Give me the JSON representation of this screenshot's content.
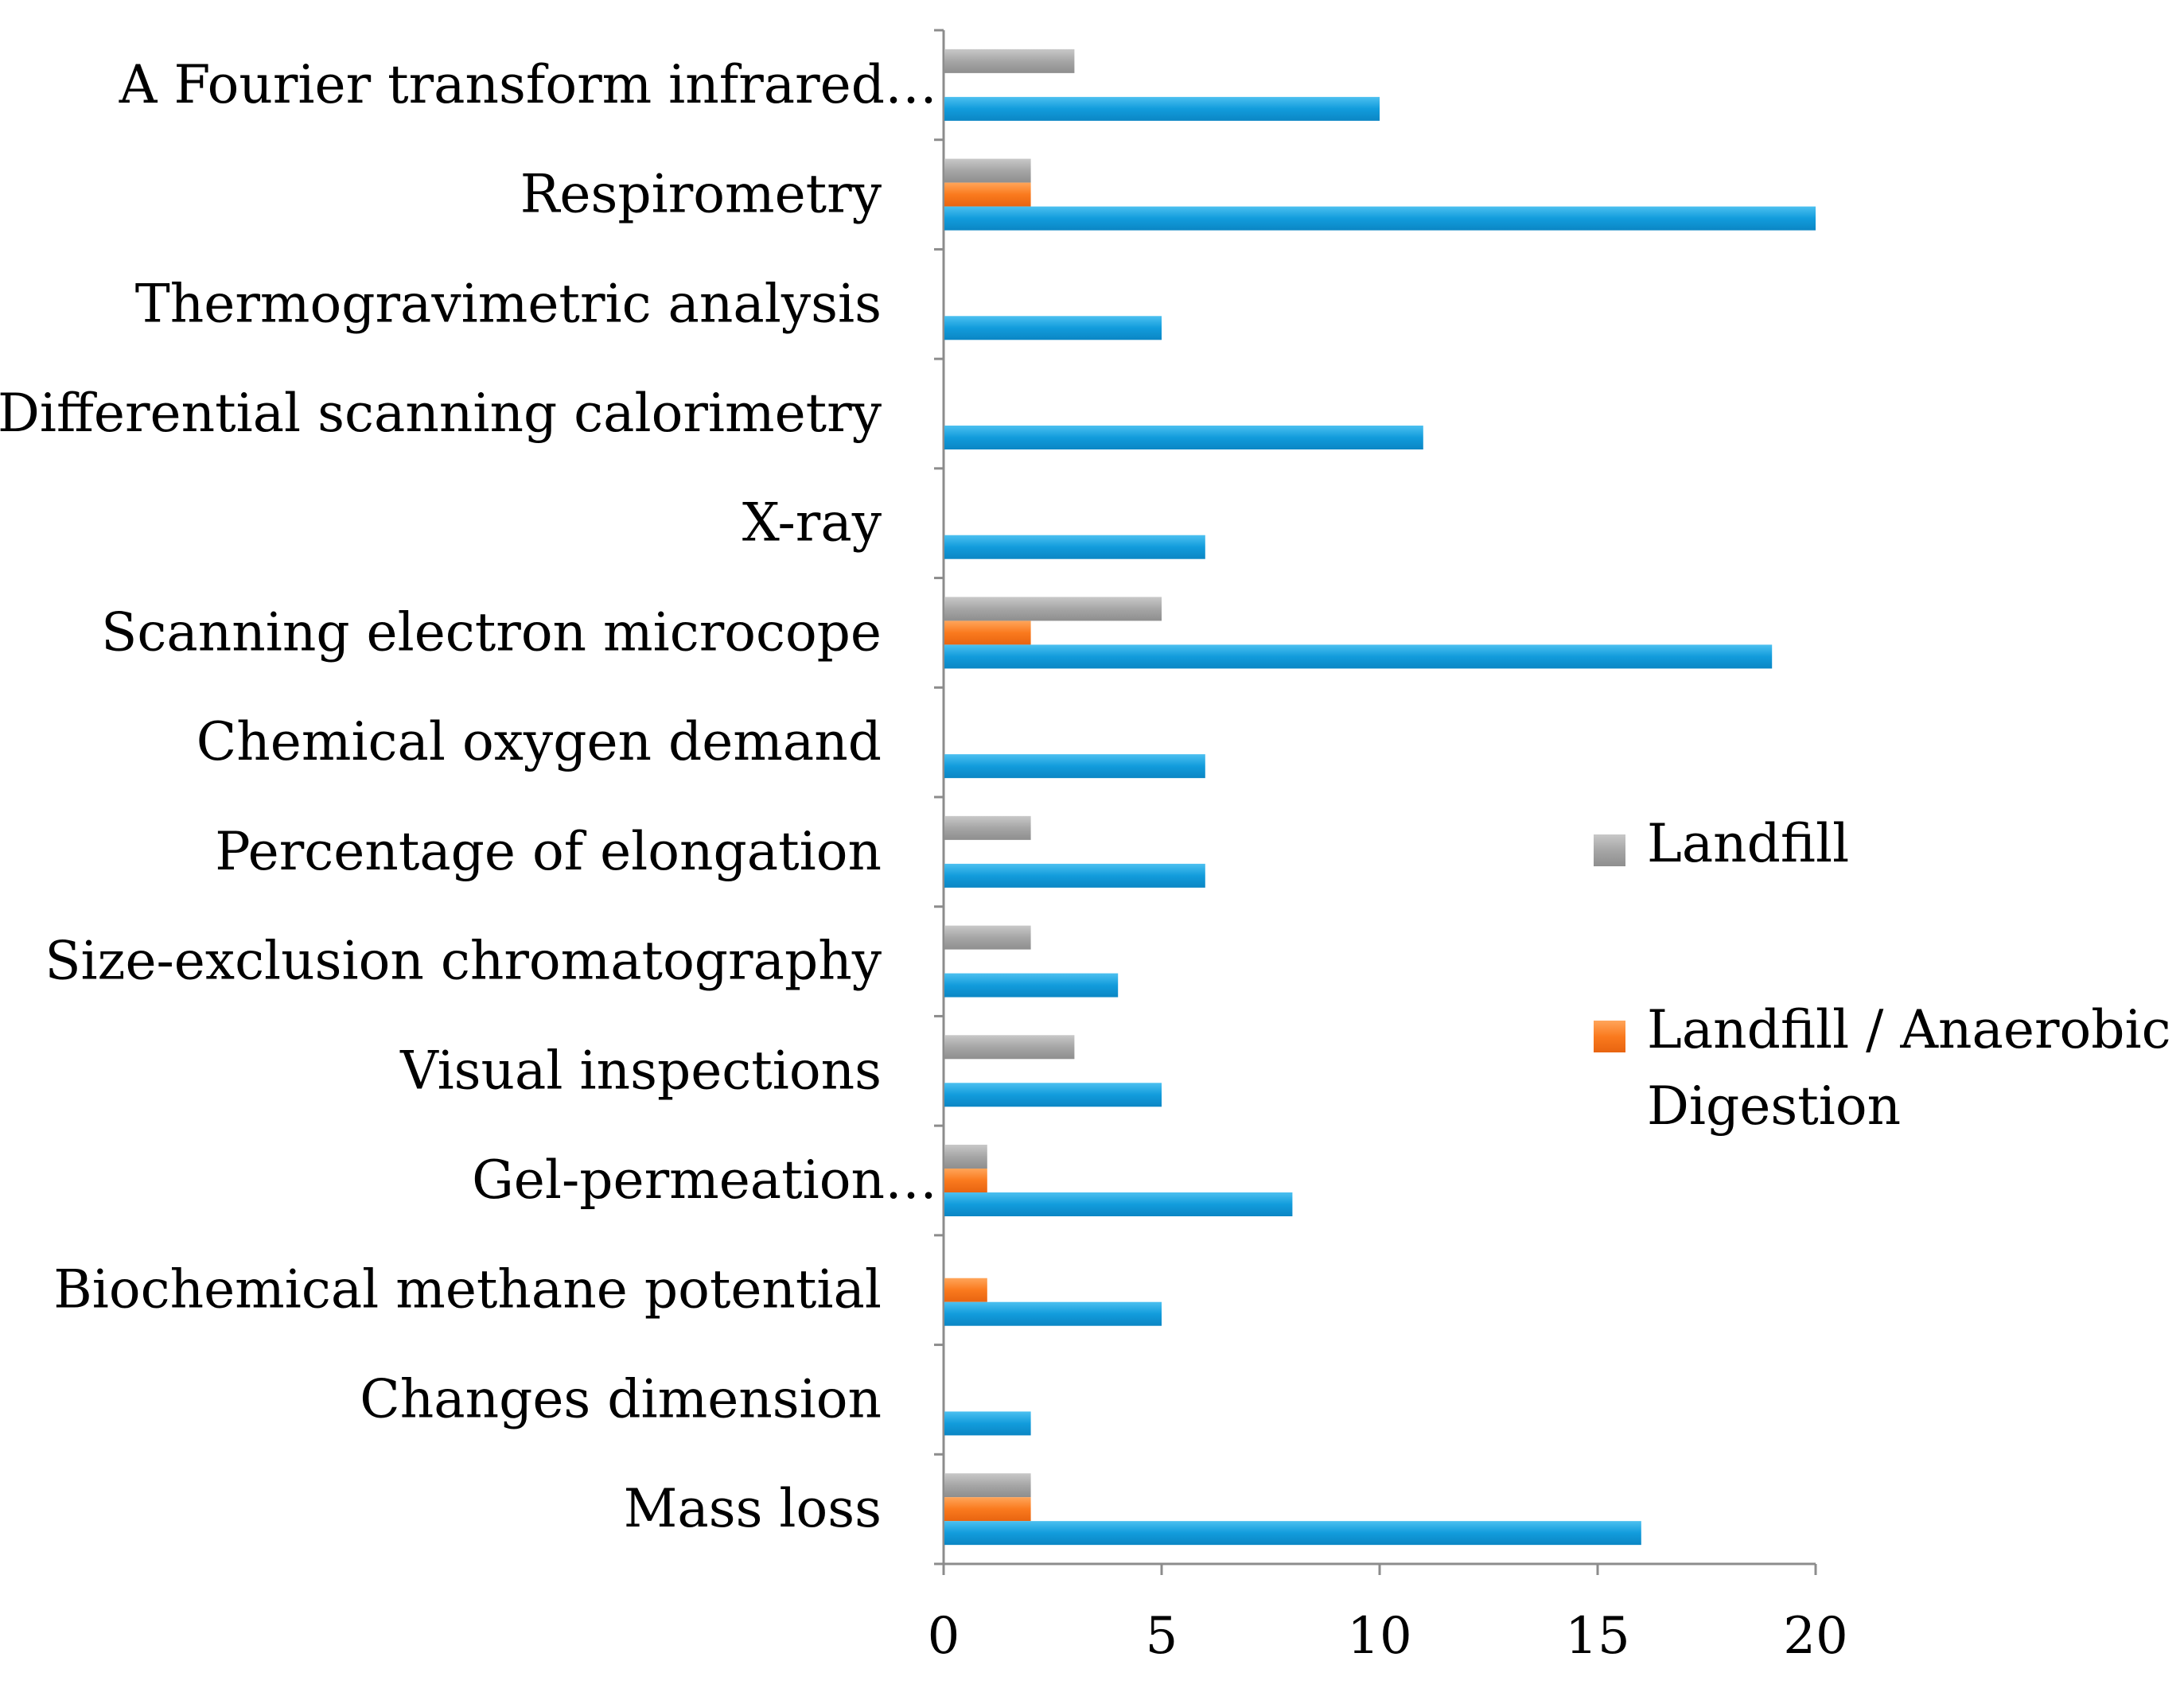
{
  "chart_data": {
    "type": "bar",
    "orientation": "horizontal",
    "title": "",
    "xlabel": "",
    "ylabel": "",
    "xlim": [
      0,
      20
    ],
    "xticks": [
      0,
      5,
      10,
      15,
      20
    ],
    "grid": false,
    "legend_position": "right",
    "categories": [
      "A Fourier transform infrared…",
      "Respirometry",
      "Thermogravimetric analysis",
      "Differential scanning calorimetry",
      "X-ray",
      "Scanning electron microcope",
      "Chemical oxygen demand",
      "Percentage of elongation",
      "Size-exclusion chromatography",
      "Visual inspections",
      "Gel-permeation…",
      "Biochemical methane potential",
      "Changes dimension",
      "Mass loss"
    ],
    "series": [
      {
        "name": "Landfill",
        "color": "#a6a6a6",
        "in_legend": true,
        "values": [
          3,
          2,
          0,
          0,
          0,
          5,
          0,
          2,
          2,
          3,
          1,
          0,
          0,
          2
        ]
      },
      {
        "name": "Landfill / Anaerobic Digestion",
        "legend_lines": [
          "Landfill / Anaerobic",
          "Digestion"
        ],
        "color": "#fa7a1e",
        "in_legend": true,
        "values": [
          0,
          2,
          0,
          0,
          0,
          2,
          0,
          0,
          0,
          0,
          1,
          1,
          0,
          2
        ]
      },
      {
        "name": "",
        "color": "#129cdc",
        "in_legend": false,
        "values": [
          10,
          20,
          5,
          11,
          6,
          19,
          6,
          6,
          4,
          5,
          8,
          5,
          2,
          16
        ]
      }
    ]
  }
}
